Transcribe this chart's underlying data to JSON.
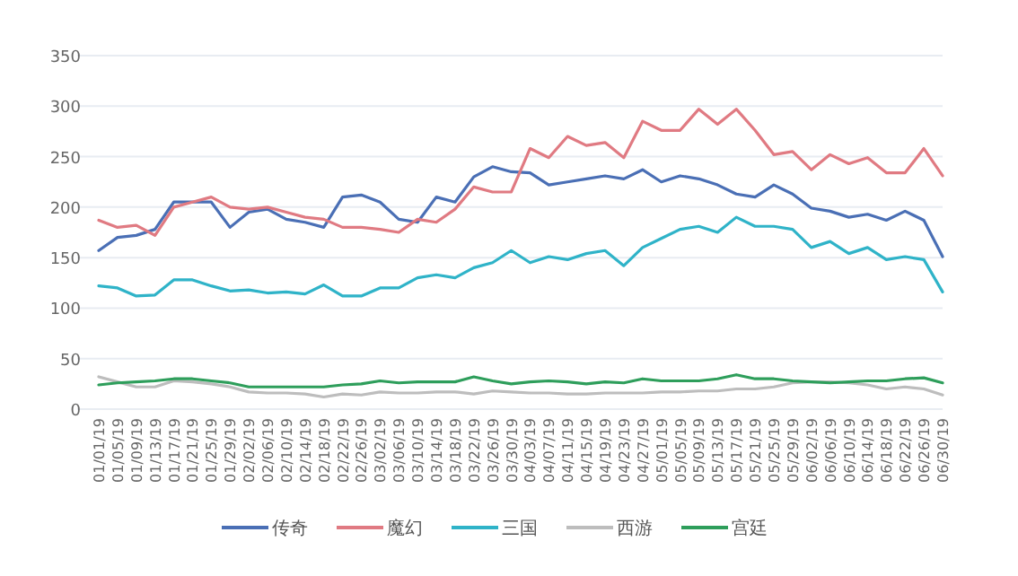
{
  "chart_data": {
    "type": "line",
    "categories": [
      "01/01/19",
      "01/05/19",
      "01/09/19",
      "01/13/19",
      "01/17/19",
      "01/21/19",
      "01/25/19",
      "01/29/19",
      "02/02/19",
      "02/06/19",
      "02/10/19",
      "02/14/19",
      "02/18/19",
      "02/22/19",
      "02/26/19",
      "03/02/19",
      "03/06/19",
      "03/10/19",
      "03/14/19",
      "03/18/19",
      "03/22/19",
      "03/26/19",
      "03/30/19",
      "04/03/19",
      "04/07/19",
      "04/11/19",
      "04/15/19",
      "04/19/19",
      "04/23/19",
      "04/27/19",
      "05/01/19",
      "05/05/19",
      "05/09/19",
      "05/13/19",
      "05/17/19",
      "05/21/19",
      "05/25/19",
      "05/29/19",
      "06/02/19",
      "06/06/19",
      "06/10/19",
      "06/14/19",
      "06/18/19",
      "06/22/19",
      "06/26/19",
      "06/30/19"
    ],
    "series": [
      {
        "name": "传奇",
        "color": "#4a6fb5",
        "values": [
          157,
          170,
          172,
          178,
          205,
          205,
          205,
          180,
          195,
          198,
          188,
          185,
          180,
          210,
          212,
          205,
          188,
          185,
          210,
          205,
          230,
          240,
          235,
          234,
          222,
          225,
          228,
          231,
          228,
          237,
          225,
          231,
          228,
          222,
          213,
          210,
          222,
          213,
          199,
          196,
          190,
          193,
          187,
          196,
          187,
          151
        ]
      },
      {
        "name": "魔幻",
        "color": "#e07a82",
        "values": [
          187,
          180,
          182,
          172,
          200,
          205,
          210,
          200,
          198,
          200,
          195,
          190,
          188,
          180,
          180,
          178,
          175,
          188,
          185,
          198,
          220,
          215,
          215,
          258,
          249,
          270,
          261,
          264,
          249,
          285,
          276,
          276,
          297,
          282,
          297,
          276,
          252,
          255,
          237,
          252,
          243,
          249,
          234,
          234,
          258,
          231
        ]
      },
      {
        "name": "三国",
        "color": "#2fb3c8",
        "values": [
          122,
          120,
          112,
          113,
          128,
          128,
          122,
          117,
          118,
          115,
          116,
          114,
          123,
          112,
          112,
          120,
          120,
          130,
          133,
          130,
          140,
          145,
          157,
          145,
          151,
          148,
          154,
          157,
          142,
          160,
          169,
          178,
          181,
          175,
          190,
          181,
          181,
          178,
          160,
          166,
          154,
          160,
          148,
          151,
          148,
          116
        ]
      },
      {
        "name": "西游",
        "color": "#bdbdbd",
        "values": [
          32,
          27,
          22,
          22,
          28,
          27,
          25,
          22,
          17,
          16,
          16,
          15,
          12,
          15,
          14,
          17,
          16,
          16,
          17,
          17,
          15,
          18,
          17,
          16,
          16,
          15,
          15,
          16,
          16,
          16,
          17,
          17,
          18,
          18,
          20,
          20,
          22,
          26,
          27,
          27,
          26,
          24,
          20,
          22,
          20,
          14
        ]
      },
      {
        "name": "宫廷",
        "color": "#2e9e5b",
        "values": [
          24,
          26,
          27,
          28,
          30,
          30,
          28,
          26,
          22,
          22,
          22,
          22,
          22,
          24,
          25,
          28,
          26,
          27,
          27,
          27,
          32,
          28,
          25,
          27,
          28,
          27,
          25,
          27,
          26,
          30,
          28,
          28,
          28,
          30,
          34,
          30,
          30,
          28,
          27,
          26,
          27,
          28,
          28,
          30,
          31,
          26
        ]
      }
    ],
    "ylim": [
      0,
      350
    ],
    "yticks": [
      0,
      50,
      100,
      150,
      200,
      250,
      300,
      350
    ],
    "grid": "y",
    "legend": "bottom"
  }
}
